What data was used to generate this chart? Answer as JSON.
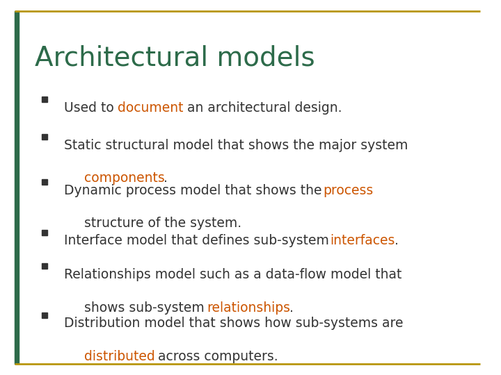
{
  "title": "Architectural models",
  "title_color": "#2d6b4a",
  "background_color": "#ffffff",
  "border_color": "#b8960c",
  "bullet_color": "#555555",
  "bullet_items": [
    {
      "parts": [
        {
          "text": "Used to ",
          "color": "#333333"
        },
        {
          "text": "document",
          "color": "#cc5500"
        },
        {
          "text": " an architectural design.",
          "color": "#333333"
        }
      ]
    },
    {
      "parts": [
        {
          "text": "Static structural model that shows the major system\n",
          "color": "#333333"
        },
        {
          "text": "components",
          "color": "#cc5500"
        },
        {
          "text": ".",
          "color": "#333333"
        }
      ]
    },
    {
      "parts": [
        {
          "text": "Dynamic process model that shows the ",
          "color": "#333333"
        },
        {
          "text": "process",
          "color": "#cc5500"
        },
        {
          "text": "\nstructure of the system.",
          "color": "#333333"
        }
      ]
    },
    {
      "parts": [
        {
          "text": "Interface model that defines sub-system ",
          "color": "#333333"
        },
        {
          "text": "interfaces",
          "color": "#cc5500"
        },
        {
          "text": ".",
          "color": "#333333"
        }
      ]
    },
    {
      "parts": [
        {
          "text": "Relationships model such as a data-flow model that\nshows sub-system ",
          "color": "#333333"
        },
        {
          "text": "relationships",
          "color": "#cc5500"
        },
        {
          "text": ".",
          "color": "#333333"
        }
      ]
    },
    {
      "parts": [
        {
          "text": "Distribution model that shows how sub-systems are\n",
          "color": "#333333"
        },
        {
          "text": "distributed",
          "color": "#cc5500"
        },
        {
          "text": " across computers.",
          "color": "#333333"
        }
      ]
    }
  ],
  "figsize": [
    7.2,
    5.4
  ],
  "dpi": 100
}
